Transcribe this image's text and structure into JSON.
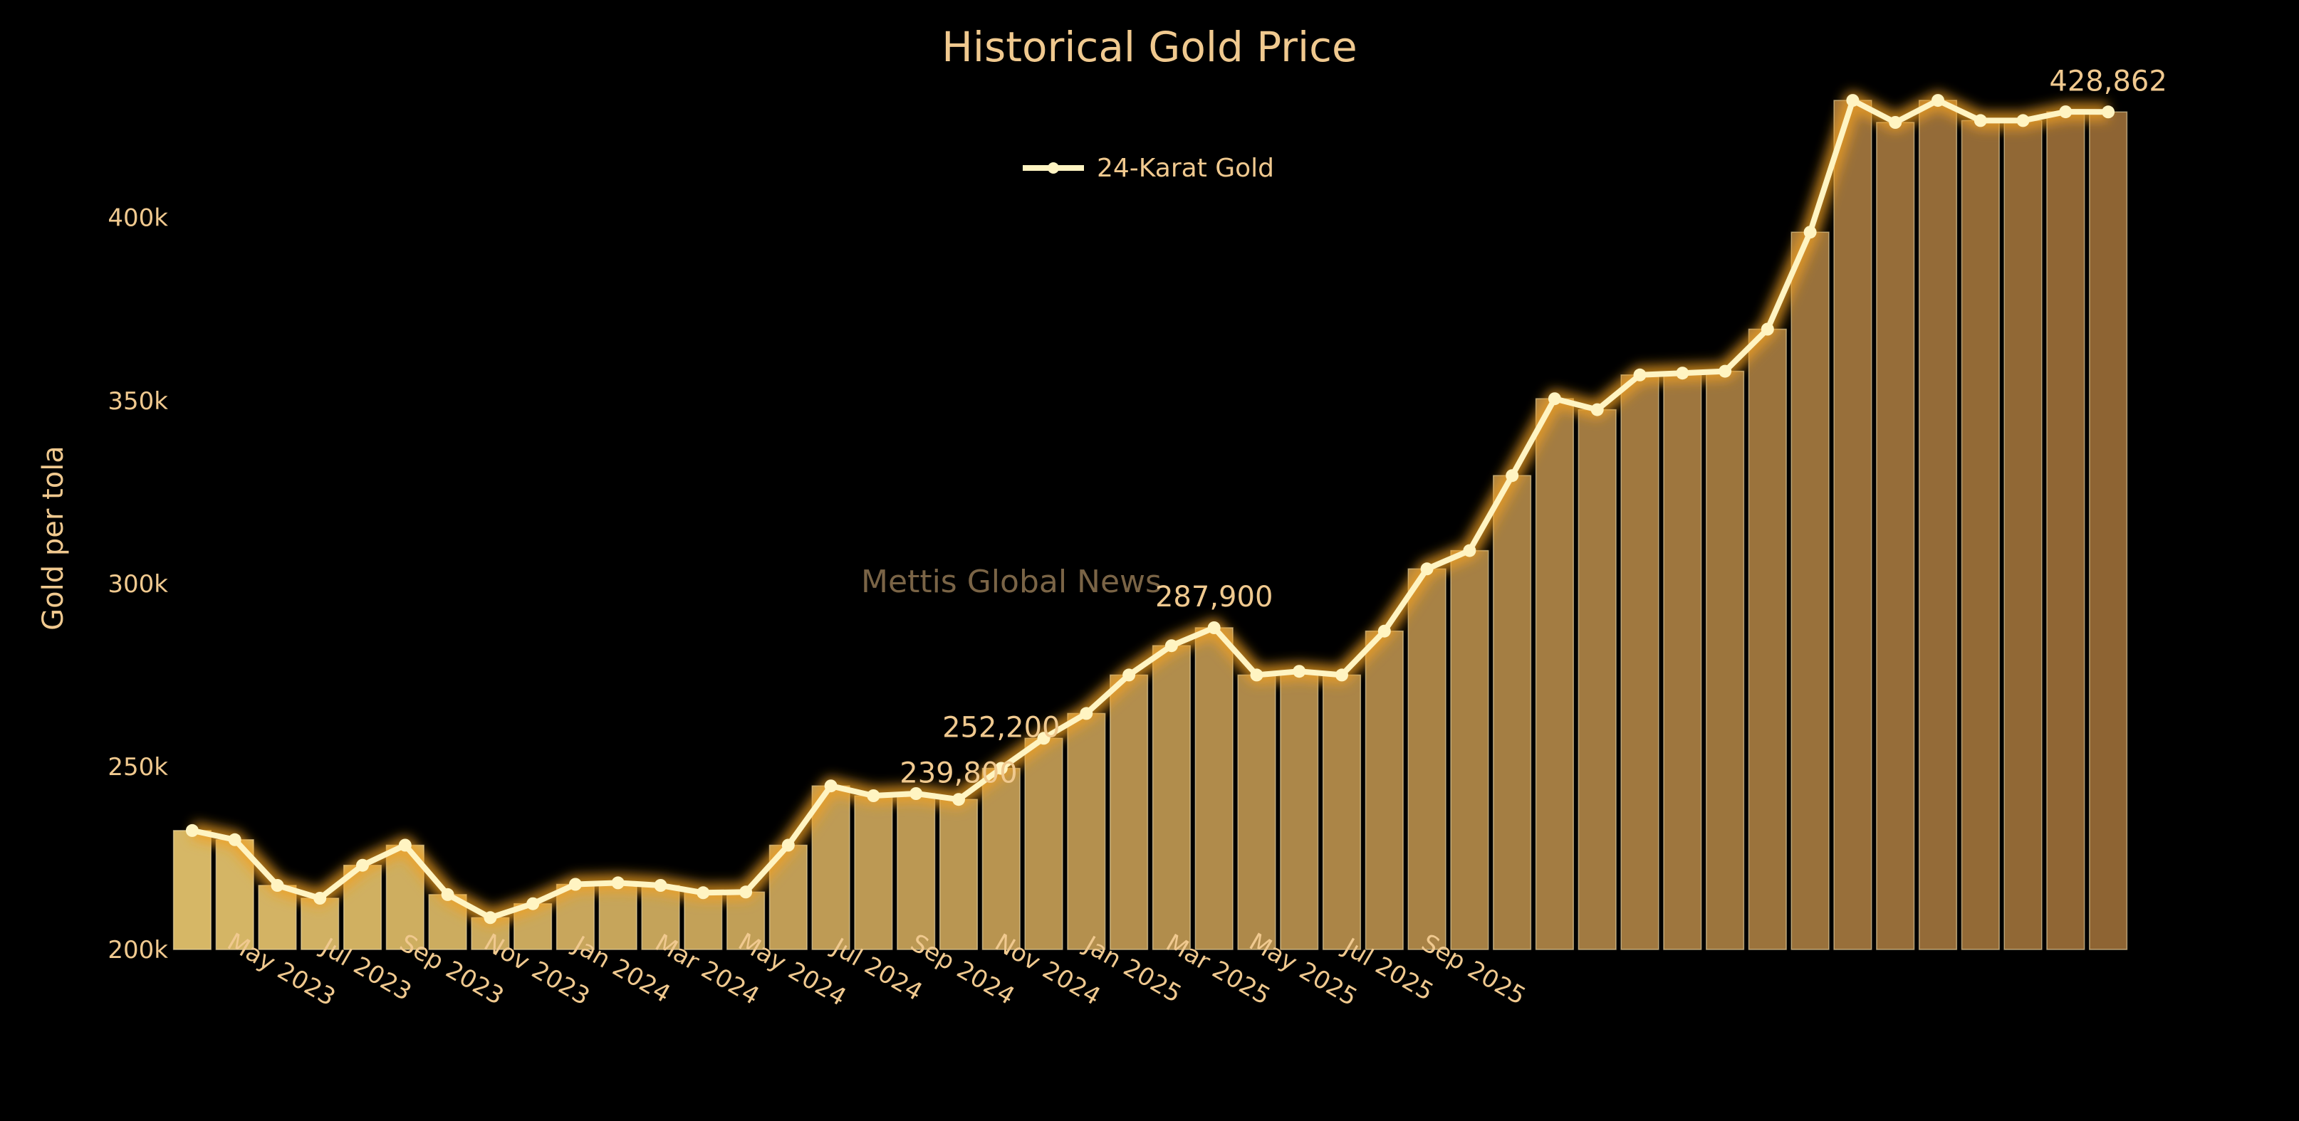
{
  "chart_data": {
    "type": "bar+line",
    "title": "Historical Gold Price",
    "ylabel": "Gold per tola",
    "xlabel": "",
    "ylim": [
      200000,
      440000
    ],
    "yticks": [
      200000,
      250000,
      300000,
      350000,
      400000
    ],
    "ytick_labels": [
      "200k",
      "250k",
      "300k",
      "350k",
      "400k"
    ],
    "grid": false,
    "legend_position": "top-center",
    "watermark": "Mettis Global News",
    "colors": {
      "bar_light": "#d6b766",
      "bar_dark": "#8e6433",
      "line": "#fff4c2",
      "glow": "#f0a020",
      "text": "#f0c98f"
    },
    "series": [
      {
        "name": "24-Karat Gold"
      }
    ],
    "x": [
      "2023-03",
      "2023-04",
      "2023-05",
      "2023-06",
      "2023-07",
      "2023-08",
      "2023-09",
      "2023-10",
      "2023-11",
      "2023-12",
      "2024-01",
      "2024-02",
      "2024-03",
      "2024-04",
      "2024-05",
      "2024-06",
      "2024-07",
      "2024-08",
      "2024-09",
      "2024-10",
      "2024-11",
      "2024-12",
      "2025-01",
      "2025-02",
      "2025-03",
      "2025-04",
      "2025-05",
      "2025-06",
      "2025-07",
      "2025-08",
      "2025-09",
      "2025-10",
      "2025-11",
      "2025-12",
      "2026-01",
      "2026-02",
      "2026-03",
      "2026-04",
      "2026-05",
      "2026-06",
      "2026-07",
      "2026-08",
      "2026-09",
      "2026-10",
      "2026-11",
      "2026-12"
    ],
    "xtick_labels": [
      "May 2023",
      "Jul 2023",
      "Sep 2023",
      "Nov 2023",
      "Jan 2024",
      "Mar 2024",
      "May 2024",
      "Jul 2024",
      "Sep 2024",
      "Nov 2024",
      "Jan 2025",
      "Mar 2025",
      "May 2025",
      "Jul 2025",
      "Sep 2025"
    ],
    "values": [
      232500,
      230000,
      217500,
      214000,
      223000,
      228500,
      215000,
      208700,
      212500,
      217800,
      218200,
      217500,
      215500,
      215700,
      228500,
      244700,
      242000,
      242600,
      241000,
      249500,
      257700,
      264500,
      275000,
      283000,
      287900,
      275000,
      276000,
      275000,
      287000,
      304000,
      309000,
      329500,
      350500,
      347500,
      357000,
      357500,
      358000,
      369500,
      396000,
      432000,
      426000,
      432000,
      426500,
      426500,
      428900,
      428862
    ],
    "annotations": [
      {
        "label": "239,800",
        "value": 239800
      },
      {
        "label": "252,200",
        "value": 252200
      },
      {
        "label": "287,900",
        "value": 287900
      },
      {
        "label": "428,862",
        "value": 428862
      }
    ]
  }
}
